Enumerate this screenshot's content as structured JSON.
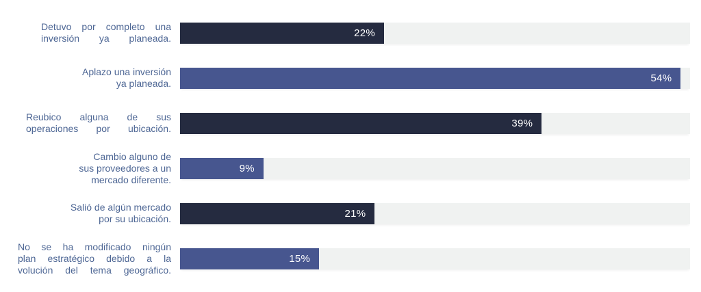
{
  "chart_data": {
    "type": "bar",
    "orientation": "horizontal",
    "title": "",
    "xlabel": "",
    "ylabel": "",
    "categories": [
      "Detuvo por completo una inversión ya planeada.",
      "Aplazo una inversión ya planeada.",
      "Reubico alguna de sus operaciones por ubicación.",
      "Cambio alguno de sus proveedores a un mercado diferente.",
      "Salió de algún mercado por su ubicación.",
      "No se ha modificado ningún plan estratégico debido a la volución del tema geográfico."
    ],
    "values": [
      22,
      54,
      39,
      9,
      21,
      15
    ],
    "value_labels": [
      "22%",
      "54%",
      "39%",
      "9%",
      "21%",
      "15%"
    ],
    "xlim": [
      0,
      55
    ],
    "grid": false,
    "legend": false,
    "colors": {
      "dark_navy": "#252b40",
      "blue": "#47568f",
      "track": "#f0f2f1",
      "category_text": "#4d6694",
      "value_text": "#ffffff",
      "background": "#ffffff"
    }
  },
  "bars": [
    {
      "lines": [
        "Detuvo por completo una",
        "inversión ya planeada."
      ],
      "value": 22,
      "display": "22%",
      "color": "#252b40"
    },
    {
      "lines": [
        "Aplazo una inversión",
        "ya planeada."
      ],
      "value": 54,
      "display": "54%",
      "color": "#47568f"
    },
    {
      "lines": [
        "Reubico alguna de sus",
        "operaciones por ubicación."
      ],
      "value": 39,
      "display": "39%",
      "color": "#252b40"
    },
    {
      "lines": [
        "Cambio alguno de",
        "sus proveedores a un",
        "mercado diferente."
      ],
      "value": 9,
      "display": "9%",
      "color": "#47568f"
    },
    {
      "lines": [
        "Salió de algún mercado",
        "por su ubicación."
      ],
      "value": 21,
      "display": "21%",
      "color": "#252b40"
    },
    {
      "lines": [
        "No se ha modificado ningún",
        "plan estratégico debido a la",
        "volución del tema geográfico."
      ],
      "value": 15,
      "display": "15%",
      "color": "#47568f"
    }
  ]
}
